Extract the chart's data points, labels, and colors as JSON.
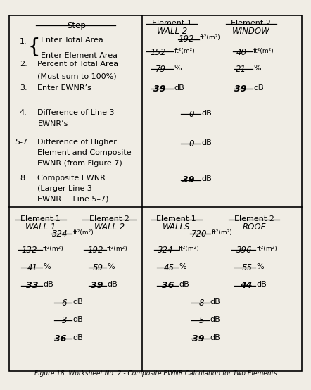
{
  "title": "Figure 18. Worksheet No. 2 - Composite EWNR Calculation for Two Elements",
  "bg_color": "#f0ede5",
  "figsize": [
    4.42,
    5.54
  ],
  "dpi": 100,
  "vx": 0.455,
  "hy": 0.468,
  "top_right": {
    "elem1_label": "Element 1",
    "elem1_sub": "WALL 2",
    "elem2_label": "Element 2",
    "elem2_sub": "WINDOW",
    "total_area": "192",
    "elem1_area": "152",
    "elem2_area": "40",
    "elem1_pct": "79",
    "elem2_pct": "21",
    "elem1_ewnr": "39",
    "elem2_ewnr": "39",
    "diff_line3": "0",
    "diff_higher": "0",
    "composite": "39"
  },
  "bottom_left": {
    "elem1_label": "Element 1",
    "elem1_sub": "WALL 1",
    "elem2_label": "Element 2",
    "elem2_sub": "WALL 2",
    "total_area": "324",
    "elem1_area": "132",
    "elem2_area": "192",
    "elem1_pct": "41",
    "elem2_pct": "59",
    "elem1_ewnr": "33",
    "elem2_ewnr": "39",
    "diff_line3": "6",
    "diff_higher": "3",
    "composite": "36"
  },
  "bottom_right": {
    "elem1_label": "Element 1",
    "elem1_sub": "WALLS",
    "elem2_label": "Element 2",
    "elem2_sub": "ROOF",
    "total_area": "720",
    "elem1_area": "324",
    "elem2_area": "396",
    "elem1_pct": "45",
    "elem2_pct": "55",
    "elem1_ewnr": "36",
    "elem2_ewnr": "44",
    "diff_line3": "8",
    "diff_higher": "5",
    "composite": "39"
  }
}
